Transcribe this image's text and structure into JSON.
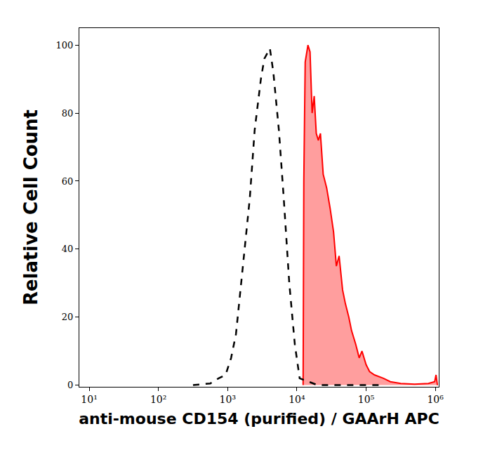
{
  "chart_data": {
    "type": "line",
    "x_label": "anti-mouse CD154 (purified) / GAArH APC",
    "y_label": "Relative Cell Count",
    "log": "x",
    "grid": false,
    "xlim": [
      7.2,
      1120000
    ],
    "ylim": [
      -0.5,
      105
    ],
    "xticks": [
      {
        "value": 10,
        "label": "10¹"
      },
      {
        "value": 100,
        "label": "10²"
      },
      {
        "value": 1000,
        "label": "10³"
      },
      {
        "value": 10000,
        "label": "10⁴"
      },
      {
        "value": 100000,
        "label": "10⁵"
      },
      {
        "value": 1000000,
        "label": "10⁶"
      }
    ],
    "yticks": [
      0,
      20,
      40,
      60,
      80,
      100
    ],
    "series": [
      {
        "color": "#000000",
        "line_style": "dashed",
        "type": "line",
        "x": [
          316,
          562,
          741,
          933,
          1122,
          1318,
          1660,
          2089,
          2455,
          3020,
          3388,
          4074,
          4571,
          5495,
          6457,
          7762,
          9333,
          10965,
          19953,
          50119,
          177828
        ],
        "values": [
          0,
          0.5,
          2,
          3,
          8,
          15,
          35,
          55,
          75,
          90,
          96,
          99,
          92,
          75,
          55,
          30,
          12,
          2,
          0,
          0,
          0
        ]
      },
      {
        "color": "#ff0000",
        "line_style": "solid",
        "type": "area",
        "x": [
          12303,
          12589,
          13183,
          14454,
          15488,
          16596,
          17783,
          19055,
          20417,
          21878,
          23988,
          26915,
          30200,
          33884,
          37154,
          40738,
          45709,
          50119,
          56234,
          61660,
          70795,
          79433,
          87096,
          100000,
          112202,
          131826,
          177828,
          223872,
          316228,
          501187,
          794328,
          977237,
          1023293,
          1071519
        ],
        "values": [
          0,
          60,
          95,
          100,
          98,
          80,
          85,
          74,
          72,
          74,
          62,
          58,
          52,
          45,
          35,
          38,
          28,
          24,
          20,
          16,
          12,
          8,
          10,
          6,
          4,
          3,
          2,
          1,
          0.5,
          0.3,
          0.5,
          1,
          3,
          0
        ]
      }
    ]
  }
}
